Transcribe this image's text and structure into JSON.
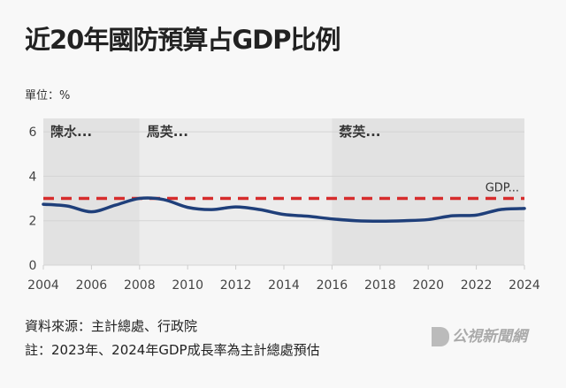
{
  "chart_data": {
    "type": "line",
    "title": "近20年國防預算占GDP比例",
    "unit_label": "單位：%",
    "x": [
      2004,
      2005,
      2006,
      2007,
      2008,
      2009,
      2010,
      2011,
      2012,
      2013,
      2014,
      2015,
      2016,
      2017,
      2018,
      2019,
      2020,
      2021,
      2022,
      2023,
      2024
    ],
    "series": [
      {
        "name": "國防預算占GDP比例",
        "color": "#1f3f7a",
        "values": [
          2.74,
          2.66,
          2.4,
          2.7,
          3.0,
          2.95,
          2.6,
          2.5,
          2.62,
          2.5,
          2.28,
          2.2,
          2.08,
          2.0,
          1.98,
          2.0,
          2.05,
          2.22,
          2.25,
          2.5,
          2.55
        ]
      }
    ],
    "reference_line": {
      "label": "GDP...",
      "value": 3,
      "color": "#d62c2c"
    },
    "periods": [
      {
        "label": "陳水...",
        "start": 2004,
        "end": 2008,
        "color": "#e2e2e2"
      },
      {
        "label": "馬英...",
        "start": 2008,
        "end": 2016,
        "color": "#ececec"
      },
      {
        "label": "蔡英...",
        "start": 2016,
        "end": 2024,
        "color": "#e2e2e2"
      }
    ],
    "xticks": [
      "2004",
      "2006",
      "2008",
      "2010",
      "2012",
      "2014",
      "2016",
      "2018",
      "2020",
      "2022",
      "2024"
    ],
    "yticks": [
      "0",
      "2",
      "4",
      "6"
    ],
    "xlim": [
      2004,
      2024
    ],
    "ylim": [
      0,
      6.6
    ],
    "grid": true
  },
  "footer": {
    "source": "資料來源：主計總處、行政院",
    "note": "註：2023年、2024年GDP成長率為主計總處預估"
  },
  "logo_text": "公視新聞網"
}
